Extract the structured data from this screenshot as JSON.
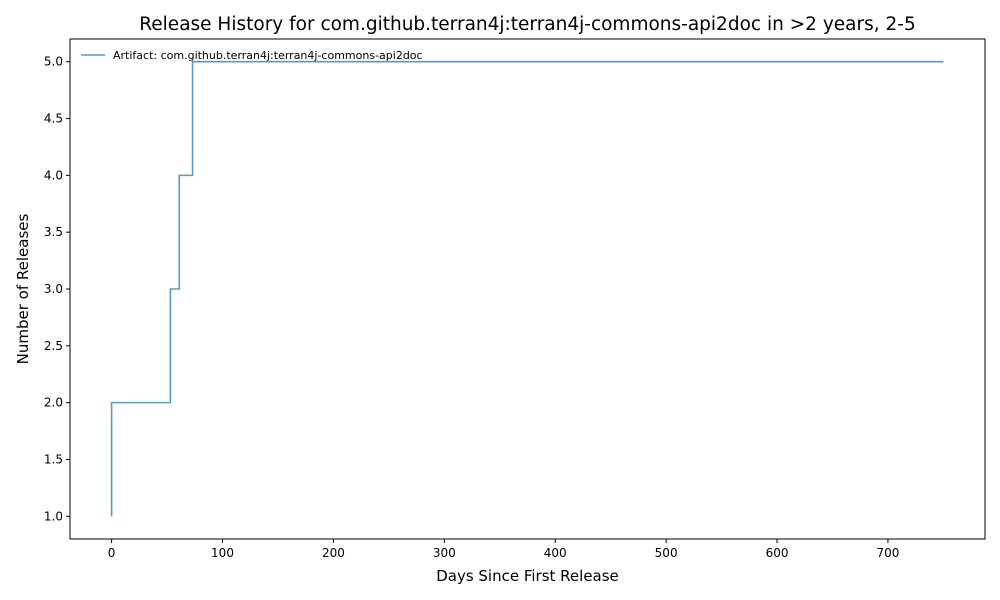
{
  "chart_data": {
    "type": "line",
    "step": "post",
    "title": "Release History for com.github.terran4j:terran4j-commons-api2doc in >2 years, 2-5",
    "xlabel": "Days Since First Release",
    "ylabel": "Number of Releases",
    "xlim": [
      -37.5,
      787.5
    ],
    "ylim": [
      0.8,
      5.2
    ],
    "xticks": [
      0,
      100,
      200,
      300,
      400,
      500,
      600,
      700
    ],
    "xtick_labels": [
      "0",
      "100",
      "200",
      "300",
      "400",
      "500",
      "600",
      "700"
    ],
    "yticks": [
      1.0,
      1.5,
      2.0,
      2.5,
      3.0,
      3.5,
      4.0,
      4.5,
      5.0
    ],
    "ytick_labels": [
      "1.0",
      "1.5",
      "2.0",
      "2.5",
      "3.0",
      "3.5",
      "4.0",
      "4.5",
      "5.0"
    ],
    "grid": false,
    "legend_position": "top-left",
    "series": [
      {
        "name": "Artifact: com.github.terran4j:terran4j-commons-api2doc",
        "color": "#1f77b4",
        "x": [
          0,
          0,
          53,
          61,
          73,
          750
        ],
        "y": [
          1,
          2,
          3,
          4,
          5,
          5
        ]
      }
    ]
  }
}
